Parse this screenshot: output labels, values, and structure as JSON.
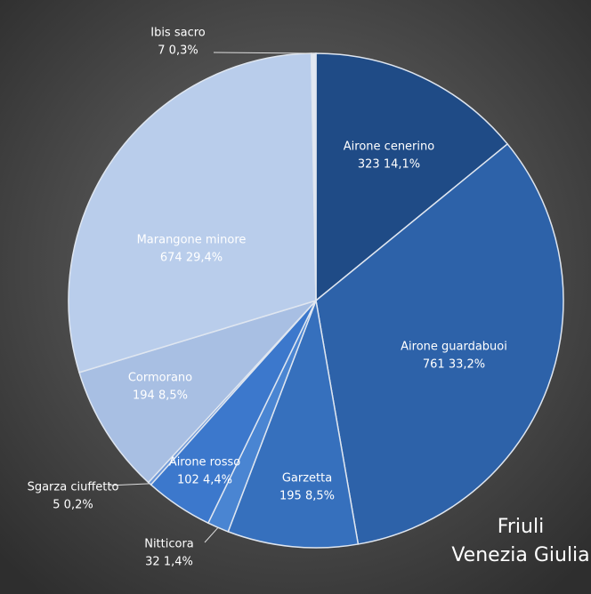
{
  "chart_data": {
    "type": "pie",
    "title": [
      "Friuli",
      "Venezia Giulia"
    ],
    "categories": [
      "Airone cenerino",
      "Airone guardabuoi",
      "Garzetta",
      "Nitticora",
      "Airone rosso",
      "Sgarza ciuffetto",
      "Cormorano",
      "Marangone minore",
      "Ibis sacro"
    ],
    "values": [
      323,
      761,
      195,
      32,
      102,
      5,
      194,
      674,
      7
    ],
    "value_labels": [
      "323 14,1%",
      "761 33,2%",
      "195 8,5%",
      "32 1,4%",
      "102 4,4%",
      "5 0,2%",
      "194 8,5%",
      "674 29,4%",
      "7 0,3%"
    ],
    "colors": [
      "#1f4b86",
      "#2d62a9",
      "#3670bd",
      "#4a85d2",
      "#3c78cc",
      "#6c97d8",
      "#a8bfe3",
      "#b9cdeb",
      "#e2e8f2"
    ]
  }
}
